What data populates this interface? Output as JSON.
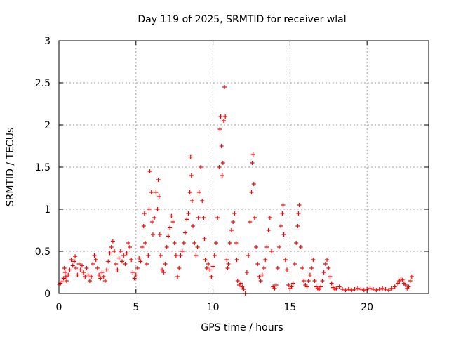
{
  "chart_data": {
    "type": "scatter",
    "title": "Day 119 of 2025, SRMTID for receiver wlal",
    "xlabel": "GPS time / hours",
    "ylabel": "SRMTID / TECUs",
    "xlim": [
      0,
      24
    ],
    "ylim": [
      0,
      3
    ],
    "xticks": [
      0,
      5,
      10,
      15,
      20
    ],
    "yticks": [
      0,
      0.5,
      1,
      1.5,
      2,
      2.5,
      3
    ],
    "xtick_labels": [
      "0",
      "5",
      "10",
      "15",
      "20"
    ],
    "ytick_labels": [
      "0",
      "0.5",
      "1",
      "1.5",
      "2",
      "2.5",
      "3"
    ],
    "grid": true,
    "marker": "+",
    "color": "#ff0000",
    "series": [
      {
        "name": "SRMTID",
        "points": [
          [
            0.0,
            0.11
          ],
          [
            0.1,
            0.12
          ],
          [
            0.2,
            0.14
          ],
          [
            0.3,
            0.18
          ],
          [
            0.35,
            0.3
          ],
          [
            0.4,
            0.25
          ],
          [
            0.45,
            0.2
          ],
          [
            0.5,
            0.15
          ],
          [
            0.6,
            0.22
          ],
          [
            0.7,
            0.28
          ],
          [
            0.8,
            0.4
          ],
          [
            0.9,
            0.33
          ],
          [
            1.0,
            0.38
          ],
          [
            1.05,
            0.44
          ],
          [
            1.1,
            0.3
          ],
          [
            1.2,
            0.22
          ],
          [
            1.3,
            0.35
          ],
          [
            1.4,
            0.28
          ],
          [
            1.5,
            0.33
          ],
          [
            1.6,
            0.25
          ],
          [
            1.7,
            0.2
          ],
          [
            1.8,
            0.3
          ],
          [
            1.9,
            0.22
          ],
          [
            2.0,
            0.15
          ],
          [
            2.1,
            0.2
          ],
          [
            2.2,
            0.35
          ],
          [
            2.3,
            0.45
          ],
          [
            2.4,
            0.4
          ],
          [
            2.5,
            0.3
          ],
          [
            2.6,
            0.22
          ],
          [
            2.7,
            0.18
          ],
          [
            2.8,
            0.25
          ],
          [
            2.9,
            0.2
          ],
          [
            3.0,
            0.15
          ],
          [
            3.1,
            0.28
          ],
          [
            3.2,
            0.38
          ],
          [
            3.3,
            0.48
          ],
          [
            3.4,
            0.55
          ],
          [
            3.5,
            0.62
          ],
          [
            3.6,
            0.5
          ],
          [
            3.7,
            0.35
          ],
          [
            3.8,
            0.28
          ],
          [
            3.9,
            0.42
          ],
          [
            4.0,
            0.5
          ],
          [
            4.1,
            0.38
          ],
          [
            4.2,
            0.45
          ],
          [
            4.3,
            0.35
          ],
          [
            4.4,
            0.48
          ],
          [
            4.5,
            0.6
          ],
          [
            4.6,
            0.55
          ],
          [
            4.7,
            0.4
          ],
          [
            4.8,
            0.25
          ],
          [
            4.9,
            0.18
          ],
          [
            5.0,
            0.22
          ],
          [
            5.1,
            0.3
          ],
          [
            5.2,
            0.42
          ],
          [
            5.3,
            0.38
          ],
          [
            5.4,
            0.55
          ],
          [
            5.5,
            0.8
          ],
          [
            5.55,
            0.95
          ],
          [
            5.6,
            0.6
          ],
          [
            5.7,
            0.35
          ],
          [
            5.8,
            0.45
          ],
          [
            5.85,
            1.0
          ],
          [
            5.9,
            1.45
          ],
          [
            6.0,
            1.2
          ],
          [
            6.05,
            0.85
          ],
          [
            6.1,
            0.7
          ],
          [
            6.2,
            0.9
          ],
          [
            6.3,
            1.2
          ],
          [
            6.4,
            1.0
          ],
          [
            6.45,
            1.35
          ],
          [
            6.5,
            1.15
          ],
          [
            6.55,
            0.7
          ],
          [
            6.6,
            0.45
          ],
          [
            6.7,
            0.28
          ],
          [
            6.8,
            0.25
          ],
          [
            6.9,
            0.35
          ],
          [
            7.0,
            0.55
          ],
          [
            7.1,
            0.68
          ],
          [
            7.2,
            0.78
          ],
          [
            7.3,
            0.92
          ],
          [
            7.4,
            0.85
          ],
          [
            7.5,
            0.6
          ],
          [
            7.6,
            0.45
          ],
          [
            7.7,
            0.2
          ],
          [
            7.8,
            0.3
          ],
          [
            7.9,
            0.45
          ],
          [
            8.0,
            0.5
          ],
          [
            8.1,
            0.6
          ],
          [
            8.2,
            0.72
          ],
          [
            8.3,
            0.88
          ],
          [
            8.4,
            0.95
          ],
          [
            8.5,
            1.2
          ],
          [
            8.55,
            1.62
          ],
          [
            8.6,
            1.4
          ],
          [
            8.65,
            1.1
          ],
          [
            8.7,
            0.8
          ],
          [
            8.8,
            0.6
          ],
          [
            8.9,
            0.45
          ],
          [
            9.0,
            0.55
          ],
          [
            9.05,
            0.9
          ],
          [
            9.1,
            1.2
          ],
          [
            9.2,
            1.5
          ],
          [
            9.3,
            1.1
          ],
          [
            9.4,
            0.9
          ],
          [
            9.45,
            0.65
          ],
          [
            9.5,
            0.4
          ],
          [
            9.6,
            0.3
          ],
          [
            9.7,
            0.35
          ],
          [
            9.8,
            0.28
          ],
          [
            9.9,
            0.2
          ],
          [
            10.0,
            0.32
          ],
          [
            10.1,
            0.45
          ],
          [
            10.2,
            0.6
          ],
          [
            10.3,
            0.9
          ],
          [
            10.4,
            1.5
          ],
          [
            10.45,
            1.95
          ],
          [
            10.5,
            2.1
          ],
          [
            10.55,
            1.75
          ],
          [
            10.6,
            1.4
          ],
          [
            10.65,
            1.55
          ],
          [
            10.7,
            2.05
          ],
          [
            10.75,
            2.45
          ],
          [
            10.8,
            2.1
          ],
          [
            10.9,
            0.4
          ],
          [
            10.95,
            0.3
          ],
          [
            11.0,
            0.35
          ],
          [
            11.1,
            0.6
          ],
          [
            11.2,
            0.75
          ],
          [
            11.3,
            0.85
          ],
          [
            11.4,
            0.95
          ],
          [
            11.5,
            0.6
          ],
          [
            11.55,
            0.4
          ],
          [
            11.6,
            0.15
          ],
          [
            11.7,
            0.1
          ],
          [
            11.8,
            0.12
          ],
          [
            11.9,
            0.08
          ],
          [
            12.0,
            0.05
          ],
          [
            12.1,
            0.0
          ],
          [
            12.2,
            0.25
          ],
          [
            12.3,
            0.45
          ],
          [
            12.4,
            0.85
          ],
          [
            12.5,
            1.2
          ],
          [
            12.55,
            1.55
          ],
          [
            12.6,
            1.65
          ],
          [
            12.65,
            1.3
          ],
          [
            12.7,
            0.9
          ],
          [
            12.8,
            0.55
          ],
          [
            12.9,
            0.35
          ],
          [
            13.0,
            0.2
          ],
          [
            13.1,
            0.15
          ],
          [
            13.2,
            0.22
          ],
          [
            13.3,
            0.3
          ],
          [
            13.4,
            0.4
          ],
          [
            13.5,
            0.55
          ],
          [
            13.6,
            0.75
          ],
          [
            13.7,
            0.9
          ],
          [
            13.8,
            0.5
          ],
          [
            13.9,
            0.08
          ],
          [
            14.0,
            0.06
          ],
          [
            14.1,
            0.1
          ],
          [
            14.2,
            0.3
          ],
          [
            14.3,
            0.55
          ],
          [
            14.4,
            0.8
          ],
          [
            14.5,
            0.95
          ],
          [
            14.55,
            1.05
          ],
          [
            14.6,
            0.7
          ],
          [
            14.7,
            0.4
          ],
          [
            14.8,
            0.28
          ],
          [
            14.9,
            0.1
          ],
          [
            15.0,
            0.06
          ],
          [
            15.1,
            0.08
          ],
          [
            15.2,
            0.12
          ],
          [
            15.3,
            0.35
          ],
          [
            15.4,
            0.6
          ],
          [
            15.5,
            0.8
          ],
          [
            15.55,
            0.95
          ],
          [
            15.6,
            1.05
          ],
          [
            15.7,
            0.55
          ],
          [
            15.8,
            0.3
          ],
          [
            15.9,
            0.15
          ],
          [
            16.0,
            0.1
          ],
          [
            16.1,
            0.08
          ],
          [
            16.2,
            0.15
          ],
          [
            16.3,
            0.22
          ],
          [
            16.4,
            0.3
          ],
          [
            16.5,
            0.4
          ],
          [
            16.6,
            0.15
          ],
          [
            16.7,
            0.08
          ],
          [
            16.8,
            0.06
          ],
          [
            16.9,
            0.05
          ],
          [
            17.0,
            0.08
          ],
          [
            17.1,
            0.15
          ],
          [
            17.2,
            0.25
          ],
          [
            17.3,
            0.35
          ],
          [
            17.4,
            0.4
          ],
          [
            17.5,
            0.3
          ],
          [
            17.6,
            0.2
          ],
          [
            17.7,
            0.12
          ],
          [
            17.8,
            0.07
          ],
          [
            17.9,
            0.05
          ],
          [
            18.0,
            0.06
          ],
          [
            18.2,
            0.08
          ],
          [
            18.4,
            0.05
          ],
          [
            18.6,
            0.04
          ],
          [
            18.8,
            0.05
          ],
          [
            19.0,
            0.04
          ],
          [
            19.2,
            0.05
          ],
          [
            19.4,
            0.06
          ],
          [
            19.6,
            0.05
          ],
          [
            19.8,
            0.04
          ],
          [
            20.0,
            0.05
          ],
          [
            20.2,
            0.06
          ],
          [
            20.4,
            0.05
          ],
          [
            20.6,
            0.04
          ],
          [
            20.8,
            0.05
          ],
          [
            21.0,
            0.06
          ],
          [
            21.2,
            0.05
          ],
          [
            21.4,
            0.04
          ],
          [
            21.6,
            0.06
          ],
          [
            21.8,
            0.08
          ],
          [
            22.0,
            0.12
          ],
          [
            22.1,
            0.15
          ],
          [
            22.2,
            0.17
          ],
          [
            22.3,
            0.16
          ],
          [
            22.4,
            0.12
          ],
          [
            22.5,
            0.1
          ],
          [
            22.6,
            0.06
          ],
          [
            22.7,
            0.08
          ],
          [
            22.8,
            0.15
          ],
          [
            22.9,
            0.2
          ]
        ]
      }
    ]
  }
}
